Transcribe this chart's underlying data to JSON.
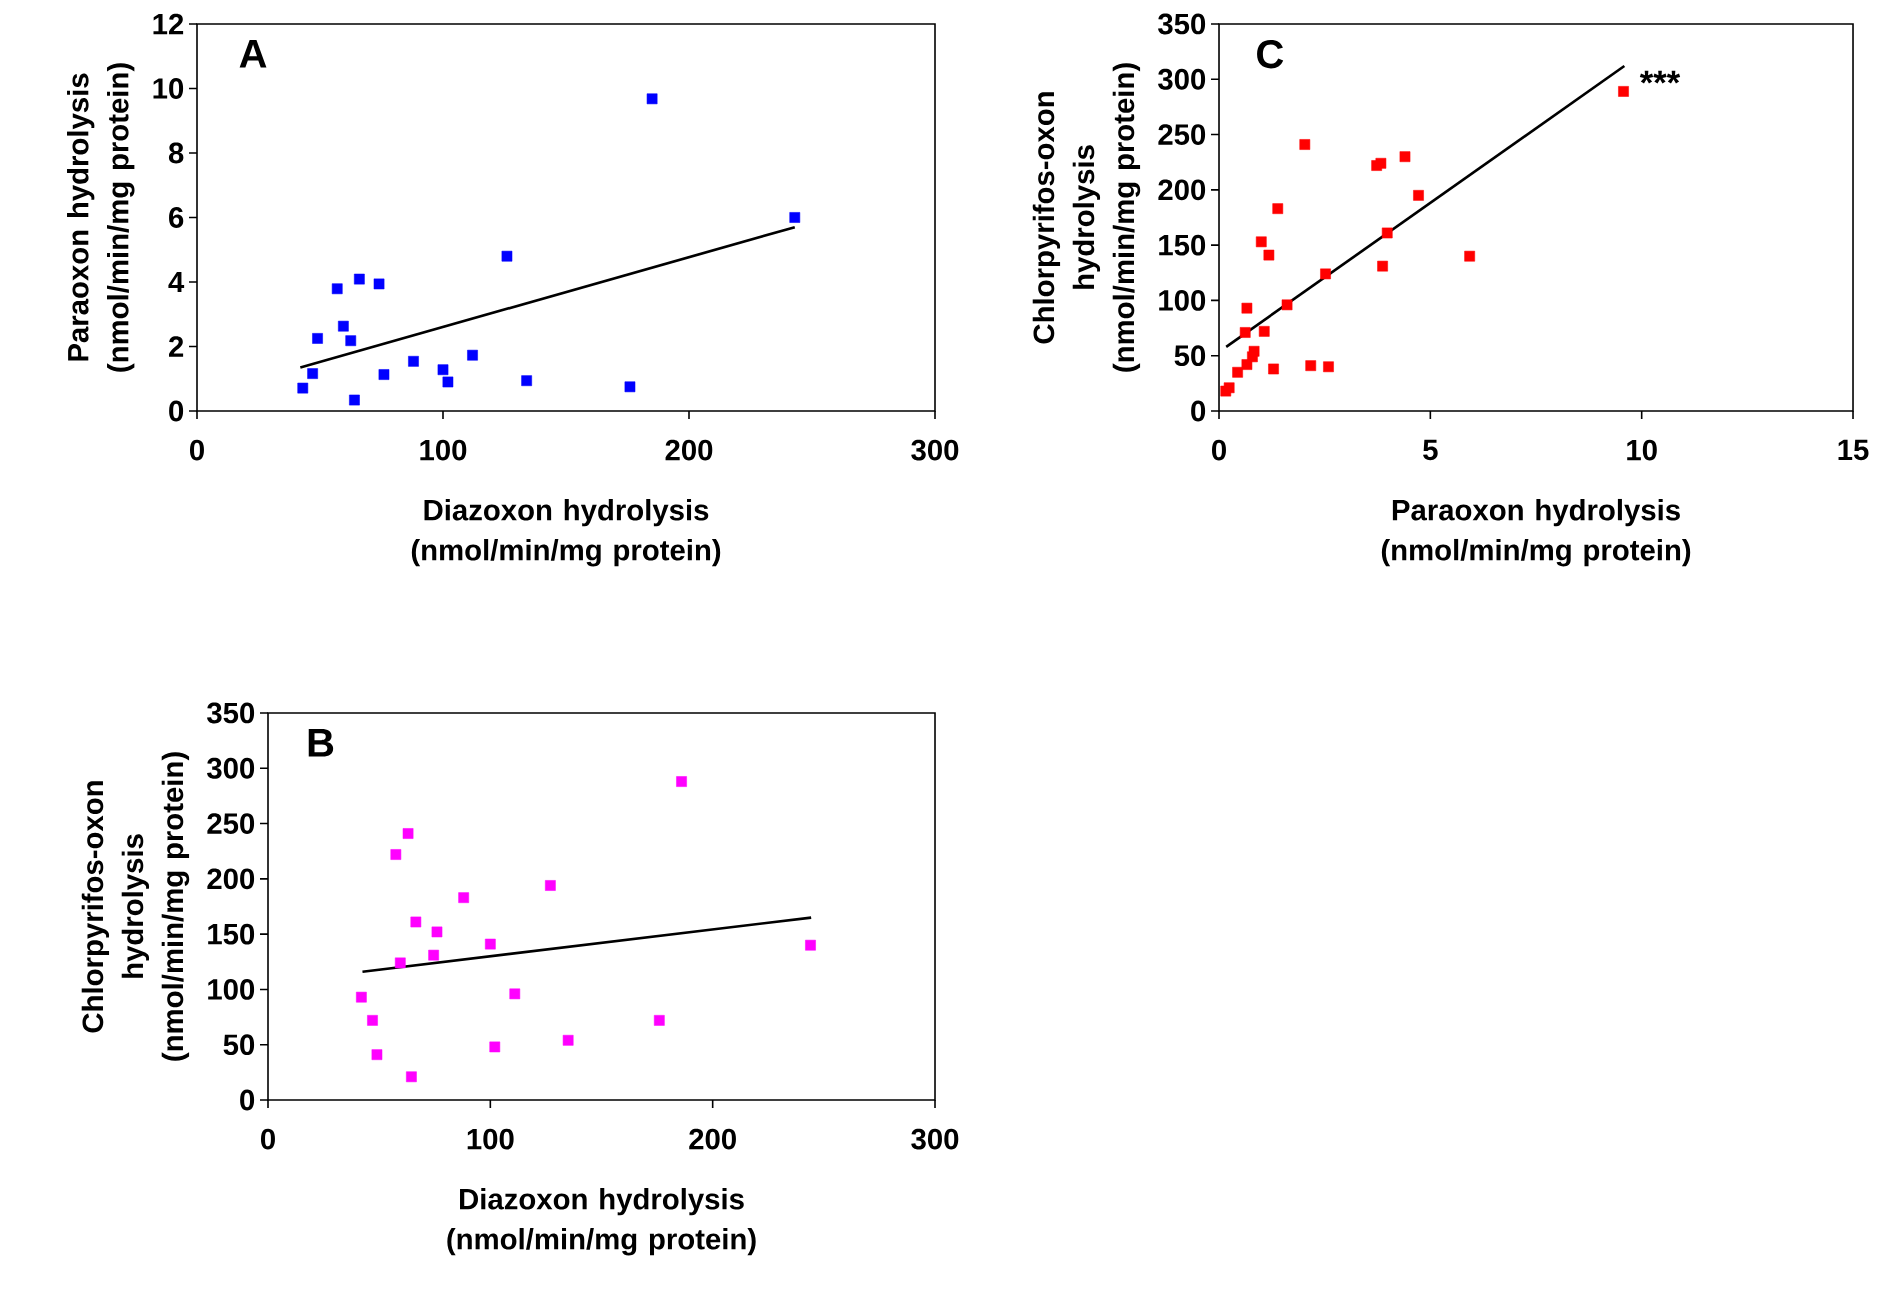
{
  "chart_data": [
    {
      "type": "scatter",
      "title": "A",
      "xlabel": "Diazoxon hydrolysis (nmol/min/mg protein)",
      "ylabel": "Paraoxon hydrolysis (nmol/min/mg protein)",
      "xlim": [
        0,
        300
      ],
      "ylim": [
        0,
        12
      ],
      "xticks": [
        0,
        100,
        200,
        300
      ],
      "yticks": [
        0,
        2,
        4,
        6,
        8,
        10,
        12
      ],
      "series": [
        {
          "color": "#0000ff",
          "marker": "square",
          "x": [
            43,
            47,
            49,
            57,
            59.5,
            62.5,
            64,
            66,
            74,
            76,
            88,
            100,
            102,
            112,
            126,
            134,
            176,
            185,
            243
          ],
          "values": [
            0.71,
            1.16,
            2.25,
            3.79,
            2.63,
            2.18,
            0.34,
            4.09,
            3.94,
            1.13,
            1.54,
            1.28,
            0.9,
            1.73,
            4.8,
            0.94,
            0.75,
            9.68,
            6.0
          ]
        },
        {
          "type": "line",
          "color": "#000000",
          "marker": "none",
          "x": [
            42,
            243
          ],
          "values": [
            1.35,
            5.7
          ]
        }
      ]
    },
    {
      "type": "scatter",
      "title": "C",
      "xlabel": "Paraoxon hydrolysis (nmol/min/mg protein)",
      "ylabel": "Chlorpyrifos-oxon hydrolysis (nmol/min/mg protein)",
      "xlim": [
        0,
        15
      ],
      "ylim": [
        0,
        350
      ],
      "xticks": [
        0,
        5,
        10,
        15
      ],
      "yticks": [
        0,
        50,
        100,
        150,
        200,
        250,
        300,
        350
      ],
      "annotations": [
        "***"
      ],
      "series": [
        {
          "color": "#ff0000",
          "marker": "square",
          "x": [
            0.16,
            0.24,
            0.44,
            0.62,
            0.66,
            0.66,
            0.79,
            0.83,
            1.0,
            1.07,
            1.18,
            1.29,
            1.39,
            1.61,
            2.03,
            2.17,
            2.52,
            2.59,
            3.73,
            3.83,
            3.87,
            3.98,
            4.4,
            4.72,
            5.93,
            9.57
          ],
          "values": [
            18,
            21,
            35,
            71,
            93,
            42,
            49,
            54,
            153,
            72,
            141,
            38,
            183,
            96,
            241,
            41,
            124,
            40,
            222,
            224,
            131,
            161,
            230,
            195,
            140,
            289
          ]
        },
        {
          "type": "line",
          "color": "#000000",
          "marker": "none",
          "x": [
            0.17,
            9.59
          ],
          "values": [
            58,
            312
          ]
        }
      ]
    },
    {
      "type": "scatter",
      "title": "B",
      "xlabel": "Diazoxon hydrolysis (nmol/min/mg protein)",
      "ylabel": "Chlorpyrifos-oxon hydrolysis (nmol/min/mg protein)",
      "xlim": [
        0,
        300
      ],
      "ylim": [
        0,
        350
      ],
      "xticks": [
        0,
        100,
        200,
        300
      ],
      "yticks": [
        0,
        50,
        100,
        150,
        200,
        250,
        300,
        350
      ],
      "series": [
        {
          "color": "#ff00ff",
          "marker": "square",
          "x": [
            42,
            47,
            49,
            57.5,
            59.5,
            63,
            64.5,
            66.5,
            74.5,
            76,
            88,
            100,
            102,
            111,
            127,
            135,
            176,
            186,
            244
          ],
          "values": [
            93,
            72,
            41,
            222,
            124,
            241,
            21,
            161,
            131,
            152,
            183,
            141,
            48,
            96,
            194,
            54,
            72,
            288,
            140
          ]
        },
        {
          "type": "line",
          "color": "#000000",
          "marker": "none",
          "x": [
            42.5,
            244.3
          ],
          "values": [
            116,
            165
          ]
        }
      ]
    }
  ]
}
